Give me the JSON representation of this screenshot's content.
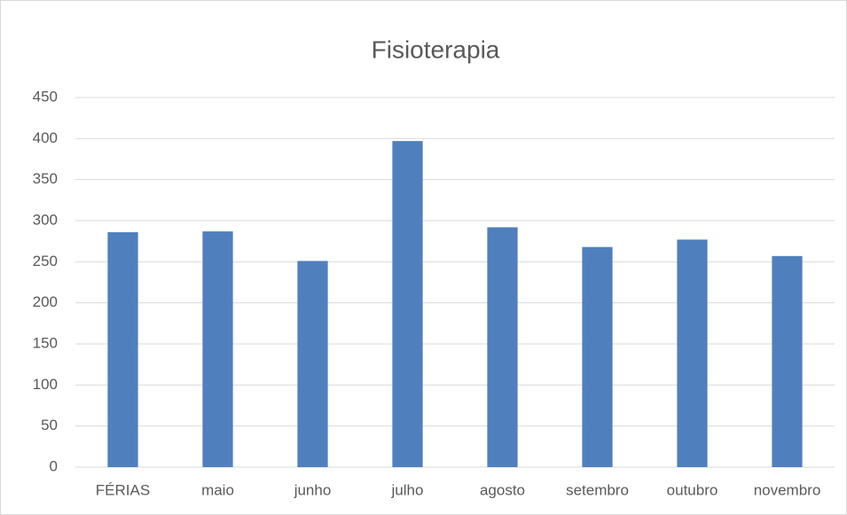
{
  "chart_data": {
    "type": "bar",
    "title": "Fisioterapia",
    "categories": [
      "FÉRIAS",
      "maio",
      "junho",
      "julho",
      "agosto",
      "setembro",
      "outubro",
      "novembro"
    ],
    "values": [
      286,
      287,
      251,
      397,
      292,
      268,
      277,
      257
    ],
    "color": "#4f80bd",
    "ylim": [
      0,
      450
    ],
    "yticks": [
      0,
      50,
      100,
      150,
      200,
      250,
      300,
      350,
      400,
      450
    ],
    "grid": true
  }
}
